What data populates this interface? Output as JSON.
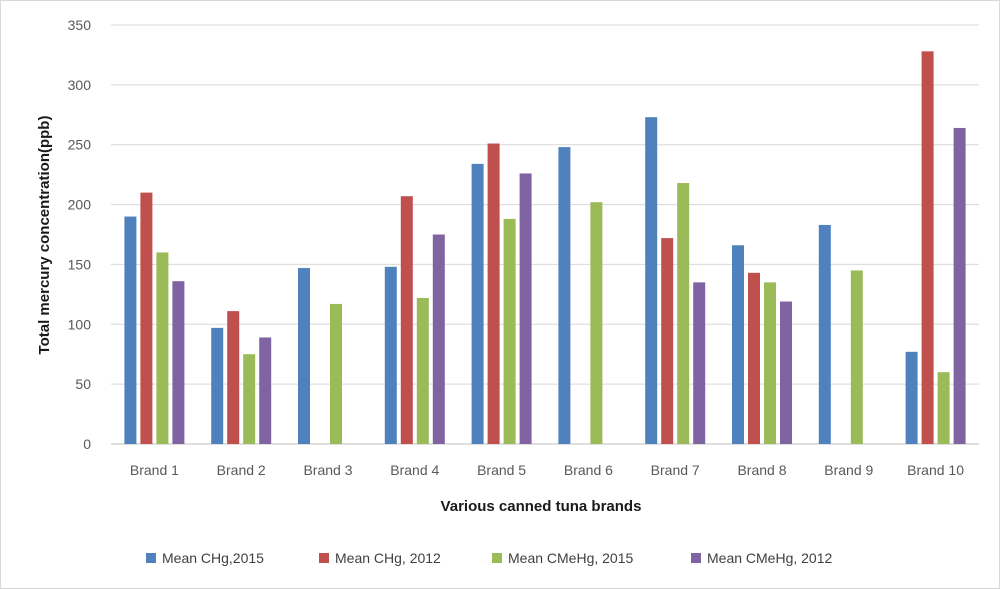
{
  "chart_data": {
    "type": "bar",
    "title": "",
    "xlabel": "Various canned tuna brands",
    "ylabel": "Total mercury concentration(ppb)",
    "ylim": [
      0,
      350
    ],
    "yticks": [
      0,
      50,
      100,
      150,
      200,
      250,
      300,
      350
    ],
    "grid": true,
    "legend_position": "bottom",
    "categories": [
      "Brand 1",
      "Brand 2",
      "Brand 3",
      "Brand 4",
      "Brand 5",
      "Brand 6",
      "Brand 7",
      "Brand 8",
      "Brand 9",
      "Brand 10"
    ],
    "series": [
      {
        "name": "Mean CHg,2015",
        "color": "#4f81bd",
        "values": [
          190,
          97,
          147,
          148,
          234,
          248,
          273,
          166,
          183,
          77
        ]
      },
      {
        "name": "Mean CHg, 2012",
        "color": "#c0504d",
        "values": [
          210,
          111,
          null,
          207,
          251,
          null,
          172,
          143,
          null,
          328
        ]
      },
      {
        "name": "Mean CMeHg, 2015",
        "color": "#9bbb59",
        "values": [
          160,
          75,
          117,
          122,
          188,
          202,
          218,
          135,
          145,
          60
        ]
      },
      {
        "name": "Mean CMeHg, 2012",
        "color": "#8064a2",
        "values": [
          136,
          89,
          null,
          175,
          226,
          null,
          135,
          119,
          null,
          264
        ]
      }
    ]
  }
}
